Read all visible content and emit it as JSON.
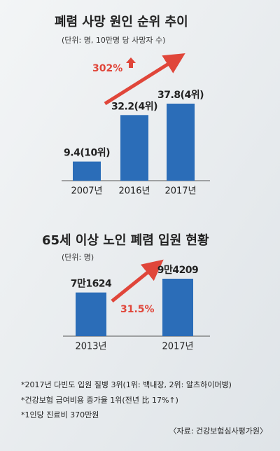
{
  "chart_data": [
    {
      "type": "bar",
      "title": "폐렴 사망 원인 순위 추이",
      "subtitle": "(단위: 명, 10만명 당 사망자 수)",
      "categories": [
        "2007년",
        "2016년",
        "2017년"
      ],
      "values": [
        9.4,
        32.2,
        37.8
      ],
      "value_labels": [
        "9.4(10위)",
        "32.2(4위)",
        "37.8(4위)"
      ],
      "color": "#2b6db8",
      "annotation": "302%"
    },
    {
      "type": "bar",
      "title": "65세 이상 노인 폐렴 입원 현황",
      "subtitle": "(단위: 명)",
      "categories": [
        "2013년",
        "2017년"
      ],
      "values": [
        71624,
        94209
      ],
      "value_labels": [
        "7만1624",
        "9만4209"
      ],
      "color": "#2b6db8",
      "annotation": "31.5%"
    }
  ],
  "notes": [
    "*2017년 다빈도 입원 질병 3위(1위: 백내장, 2위: 알츠하이머병)",
    "*건강보험 급여비용 증가율 1위(전년 比 17%↑)",
    "*1인당 진료비 370만원"
  ],
  "source": "〈자료: 건강보험심사평가원〉"
}
